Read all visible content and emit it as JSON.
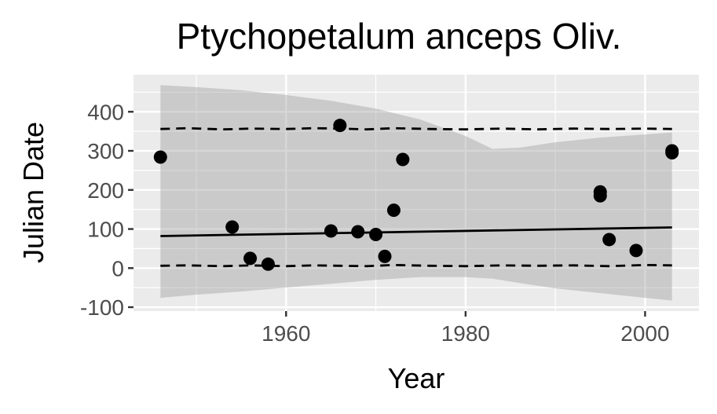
{
  "chart_data": {
    "type": "scatter",
    "title": "Ptychopetalum anceps Oliv.",
    "xlabel": "Year",
    "ylabel": "Julian Date",
    "xlim": [
      1943,
      2006
    ],
    "ylim": [
      -110,
      495
    ],
    "x_ticks": [
      1960,
      1980,
      2000
    ],
    "x_tick_labels": [
      "1960",
      "1980",
      "2000"
    ],
    "y_ticks": [
      -100,
      0,
      100,
      200,
      300,
      400
    ],
    "y_tick_labels": [
      "-100",
      "0",
      "100",
      "200",
      "300",
      "400"
    ],
    "x_minor_ticks": [
      1950,
      1970,
      1990
    ],
    "y_minor_ticks": [
      -50,
      50,
      150,
      250,
      350,
      450
    ],
    "grid": true,
    "panel_color": "#ebebeb",
    "points": [
      {
        "x": 1946,
        "y": 284
      },
      {
        "x": 1954,
        "y": 105
      },
      {
        "x": 1956,
        "y": 25
      },
      {
        "x": 1958,
        "y": 10
      },
      {
        "x": 1965,
        "y": 95
      },
      {
        "x": 1966,
        "y": 365
      },
      {
        "x": 1968,
        "y": 93
      },
      {
        "x": 1970,
        "y": 86
      },
      {
        "x": 1971,
        "y": 30
      },
      {
        "x": 1972,
        "y": 148
      },
      {
        "x": 1973,
        "y": 278
      },
      {
        "x": 1995,
        "y": 195
      },
      {
        "x": 1995,
        "y": 185
      },
      {
        "x": 1996,
        "y": 73
      },
      {
        "x": 1999,
        "y": 45
      },
      {
        "x": 2003,
        "y": 300
      },
      {
        "x": 2003,
        "y": 295
      }
    ],
    "fit_line": {
      "x": [
        1946,
        2003
      ],
      "y": [
        82,
        104
      ]
    },
    "confidence_band": {
      "x": [
        1946,
        1950,
        1955,
        1960,
        1965,
        1970,
        1975,
        1980,
        1983,
        1986,
        1990,
        1995,
        2000,
        2003
      ],
      "upper": [
        468,
        463,
        455,
        443,
        428,
        408,
        380,
        338,
        305,
        308,
        322,
        334,
        342,
        347
      ],
      "lower": [
        -76,
        -68,
        -60,
        -50,
        -40,
        -30,
        -23,
        -23,
        -27,
        -38,
        -52,
        -64,
        -76,
        -83
      ]
    },
    "quantile_upper": {
      "x": [
        1946,
        1949,
        1953,
        1956,
        1960,
        1963,
        1966,
        1969,
        1972,
        1976,
        1980,
        1984,
        1988,
        1992,
        1996,
        2000,
        2003
      ],
      "y": [
        356,
        358,
        355,
        357,
        356,
        358,
        357,
        355,
        358,
        356,
        355,
        357,
        355,
        357,
        356,
        357,
        356
      ]
    },
    "quantile_lower": {
      "x": [
        1946,
        1949,
        1953,
        1956,
        1960,
        1963,
        1966,
        1969,
        1972,
        1976,
        1980,
        1984,
        1988,
        1992,
        1996,
        2000,
        2003
      ],
      "y": [
        6,
        7,
        5,
        7,
        5,
        7,
        6,
        5,
        8,
        6,
        5,
        7,
        6,
        7,
        5,
        8,
        7
      ]
    }
  }
}
